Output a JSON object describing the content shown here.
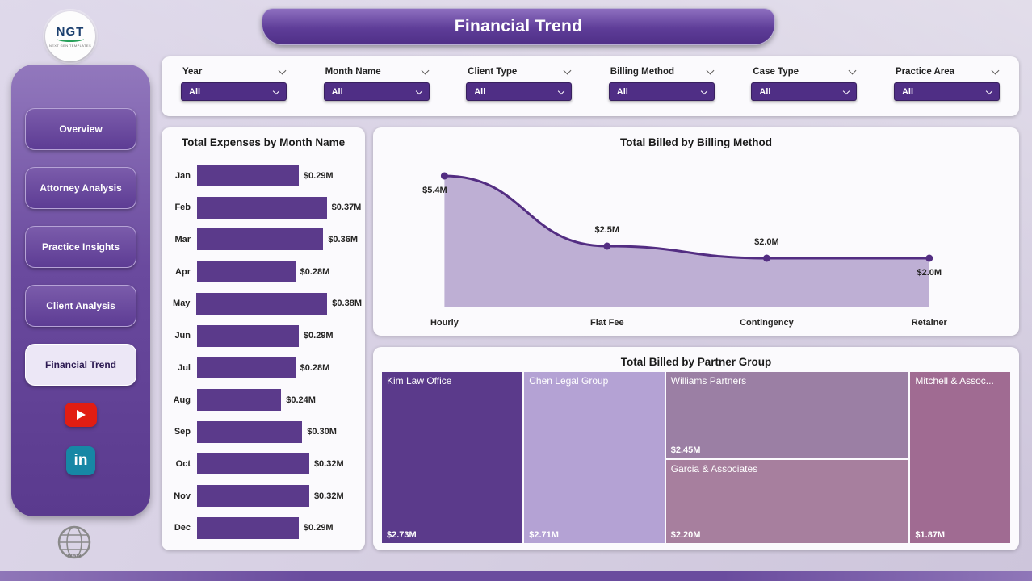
{
  "app": {
    "title": "Financial Trend",
    "logo": {
      "text": "NGT",
      "subtext": "NEXT GEN TEMPLATES"
    }
  },
  "theme": {
    "accent": "#4f2e85",
    "background": "#d8d1e3",
    "banner": "#5e3d98",
    "bottom_bar": "#6a4c9e"
  },
  "sidebar": {
    "items": [
      {
        "label": "Overview",
        "active": false
      },
      {
        "label": "Attorney Analysis",
        "active": false
      },
      {
        "label": "Practice Insights",
        "active": false
      },
      {
        "label": "Client Analysis",
        "active": false
      },
      {
        "label": "Financial Trend",
        "active": true
      }
    ],
    "social": {
      "youtube_color": "#e11d12",
      "linkedin_glyph": "in",
      "linkedin_color": "#1787a5"
    }
  },
  "filters": [
    {
      "label": "Year",
      "value": "All"
    },
    {
      "label": "Month Name",
      "value": "All"
    },
    {
      "label": "Client Type",
      "value": "All"
    },
    {
      "label": "Billing Method",
      "value": "All"
    },
    {
      "label": "Case Type",
      "value": "All"
    },
    {
      "label": "Practice Area",
      "value": "All"
    }
  ],
  "chart_data": [
    {
      "type": "bar",
      "orientation": "horizontal",
      "title": "Total Expenses by Month Name",
      "categories": [
        "Jan",
        "Feb",
        "Mar",
        "Apr",
        "May",
        "Jun",
        "Jul",
        "Aug",
        "Sep",
        "Oct",
        "Nov",
        "Dec"
      ],
      "values": [
        0.29,
        0.37,
        0.36,
        0.28,
        0.38,
        0.29,
        0.28,
        0.24,
        0.3,
        0.32,
        0.32,
        0.29
      ],
      "labels": [
        "$0.29M",
        "$0.37M",
        "$0.36M",
        "$0.28M",
        "$0.38M",
        "$0.29M",
        "$0.28M",
        "$0.24M",
        "$0.30M",
        "$0.32M",
        "$0.32M",
        "$0.29M"
      ],
      "xlim": [
        0,
        0.38
      ],
      "bar_color": "#5b3a8b",
      "grid": false
    },
    {
      "type": "area",
      "title": "Total Billed by Billing Method",
      "categories": [
        "Hourly",
        "Flat Fee",
        "Contingency",
        "Retainer"
      ],
      "values": [
        5.4,
        2.5,
        2.0,
        2.0
      ],
      "labels": [
        "$5.4M",
        "$2.5M",
        "$2.0M",
        "$2.0M"
      ],
      "ylim": [
        0,
        5.4
      ],
      "line_color": "#532d82",
      "fill_color": "#b7a6cf",
      "grid": false
    },
    {
      "type": "treemap",
      "title": "Total Billed by Partner Group",
      "items": [
        {
          "name": "Kim Law Office",
          "label": "$2.73M",
          "value": 2.73,
          "color": "#5b3a8b"
        },
        {
          "name": "Chen Legal Group",
          "label": "$2.71M",
          "value": 2.71,
          "color": "#b4a2d4"
        },
        {
          "name": "Williams Partners",
          "label": "$2.45M",
          "value": 2.45,
          "color": "#9b7fa4"
        },
        {
          "name": "Garcia & Associates",
          "label": "$2.20M",
          "value": 2.2,
          "color": "#a77f9e"
        },
        {
          "name": "Mitchell & Assoc...",
          "label": "$1.87M",
          "value": 1.87,
          "color": "#a06b92"
        }
      ]
    }
  ]
}
